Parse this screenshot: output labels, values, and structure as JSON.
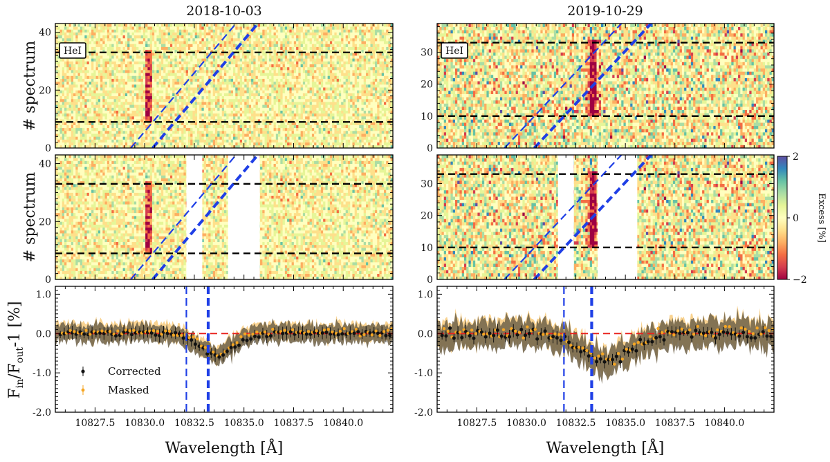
{
  "figure": {
    "ylabel_spectrum": "# spectrum",
    "xlabel": "Wavelength [Å]",
    "colorbar": {
      "label": "Excess [%]",
      "ticks": [
        "2",
        "0",
        "−2"
      ],
      "vmin": -2,
      "vmax": 2,
      "colors": [
        "#9e0142",
        "#d53e4f",
        "#f46d43",
        "#fdae61",
        "#fee08b",
        "#ffffbf",
        "#e6f598",
        "#abdda4",
        "#66c2a5",
        "#3288bd",
        "#5e4fa2"
      ]
    },
    "he_label": "HeI"
  },
  "chart_data": [
    {
      "type": "heatmap",
      "date": "2018-10-03",
      "panel": "residual map",
      "xlim": [
        10825.5,
        10842.5
      ],
      "ylim": [
        0,
        43
      ],
      "yticks": [
        "0",
        "20",
        "40"
      ],
      "ytick_values": [
        0,
        20,
        40
      ],
      "transit_lines": [
        9,
        33
      ],
      "telluric_tracks": [
        [
          10829.3,
          0,
          10834.6,
          43
        ],
        [
          10830.4,
          0,
          10835.7,
          43
        ]
      ],
      "absorption_center": 10830.2,
      "masked": false
    },
    {
      "type": "heatmap",
      "date": "2019-10-29",
      "panel": "residual map",
      "xlim": [
        10825.5,
        10842.5
      ],
      "ylim": [
        0,
        39
      ],
      "yticks": [
        "0",
        "10",
        "20",
        "30"
      ],
      "ytick_values": [
        0,
        10,
        20,
        30
      ],
      "transit_lines": [
        10,
        33
      ],
      "telluric_tracks": [
        [
          10828.9,
          0,
          10834.8,
          39
        ],
        [
          10830.4,
          0,
          10836.3,
          39
        ]
      ],
      "absorption_center": 10833.3,
      "masked": false
    },
    {
      "type": "heatmap",
      "date": "2018-10-03",
      "panel": "masked map",
      "xlim": [
        10825.5,
        10842.5
      ],
      "ylim": [
        0,
        43
      ],
      "yticks": [
        "0",
        "20",
        "40"
      ],
      "ytick_values": [
        0,
        20,
        40
      ],
      "transit_lines": [
        9,
        33
      ],
      "telluric_tracks": [
        [
          10829.3,
          0,
          10834.6,
          43
        ],
        [
          10830.4,
          0,
          10835.7,
          43
        ]
      ],
      "absorption_center": 10830.2,
      "masked": true,
      "mask_ranges": [
        [
          10832.1,
          10832.9
        ],
        [
          10834.2,
          10835.8
        ]
      ]
    },
    {
      "type": "heatmap",
      "date": "2019-10-29",
      "panel": "masked map",
      "xlim": [
        10825.5,
        10842.5
      ],
      "ylim": [
        0,
        39
      ],
      "yticks": [
        "0",
        "10",
        "20",
        "30"
      ],
      "ytick_values": [
        0,
        10,
        20,
        30
      ],
      "transit_lines": [
        10,
        33
      ],
      "telluric_tracks": [
        [
          10828.9,
          0,
          10834.8,
          39
        ],
        [
          10830.4,
          0,
          10836.3,
          39
        ]
      ],
      "absorption_center": 10833.3,
      "masked": true,
      "mask_ranges": [
        [
          10831.6,
          10832.4
        ],
        [
          10833.6,
          10835.6
        ]
      ]
    },
    {
      "type": "line",
      "date": "2018-10-03",
      "panel": "transmission spectrum",
      "ylabel": "Fin/Fout-1 [%]",
      "xlim": [
        10825.5,
        10842.5
      ],
      "ylim": [
        -2.0,
        1.2
      ],
      "xticks": [
        "10827.5",
        "10830.0",
        "10832.5",
        "10835.0",
        "10837.5",
        "10840.0"
      ],
      "xtick_values": [
        10827.5,
        10830.0,
        10832.5,
        10835.0,
        10837.5,
        10840.0
      ],
      "yticks": [
        "1.0",
        "0.0",
        "-1.0",
        "-2.0"
      ],
      "ytick_values": [
        1.0,
        0.0,
        -1.0,
        -2.0
      ],
      "vlines": [
        10832.1,
        10833.2
      ],
      "legend": [
        "Corrected",
        "Masked"
      ],
      "feature": {
        "center": 10833.6,
        "depth": -0.55,
        "width": 1.2
      },
      "series": [
        {
          "name": "Corrected",
          "color": "#111111"
        },
        {
          "name": "Masked",
          "color": "#f5a623"
        }
      ]
    },
    {
      "type": "line",
      "date": "2019-10-29",
      "panel": "transmission spectrum",
      "xlim": [
        10825.5,
        10842.5
      ],
      "ylim": [
        -2.0,
        1.2
      ],
      "xticks": [
        "10827.5",
        "10830.0",
        "10832.5",
        "10835.0",
        "10837.5",
        "10840.0"
      ],
      "xtick_values": [
        10827.5,
        10830.0,
        10832.5,
        10835.0,
        10837.5,
        10840.0
      ],
      "yticks": [
        "1.0",
        "0.0",
        "-1.0",
        "-2.0"
      ],
      "ytick_values": [
        1.0,
        0.0,
        -1.0,
        -2.0
      ],
      "vlines": [
        10831.9,
        10833.3
      ],
      "feature": {
        "center": 10834.0,
        "depth": -0.7,
        "width": 1.8
      },
      "series": [
        {
          "name": "Corrected",
          "color": "#111111"
        },
        {
          "name": "Masked",
          "color": "#f5a623"
        }
      ]
    }
  ]
}
